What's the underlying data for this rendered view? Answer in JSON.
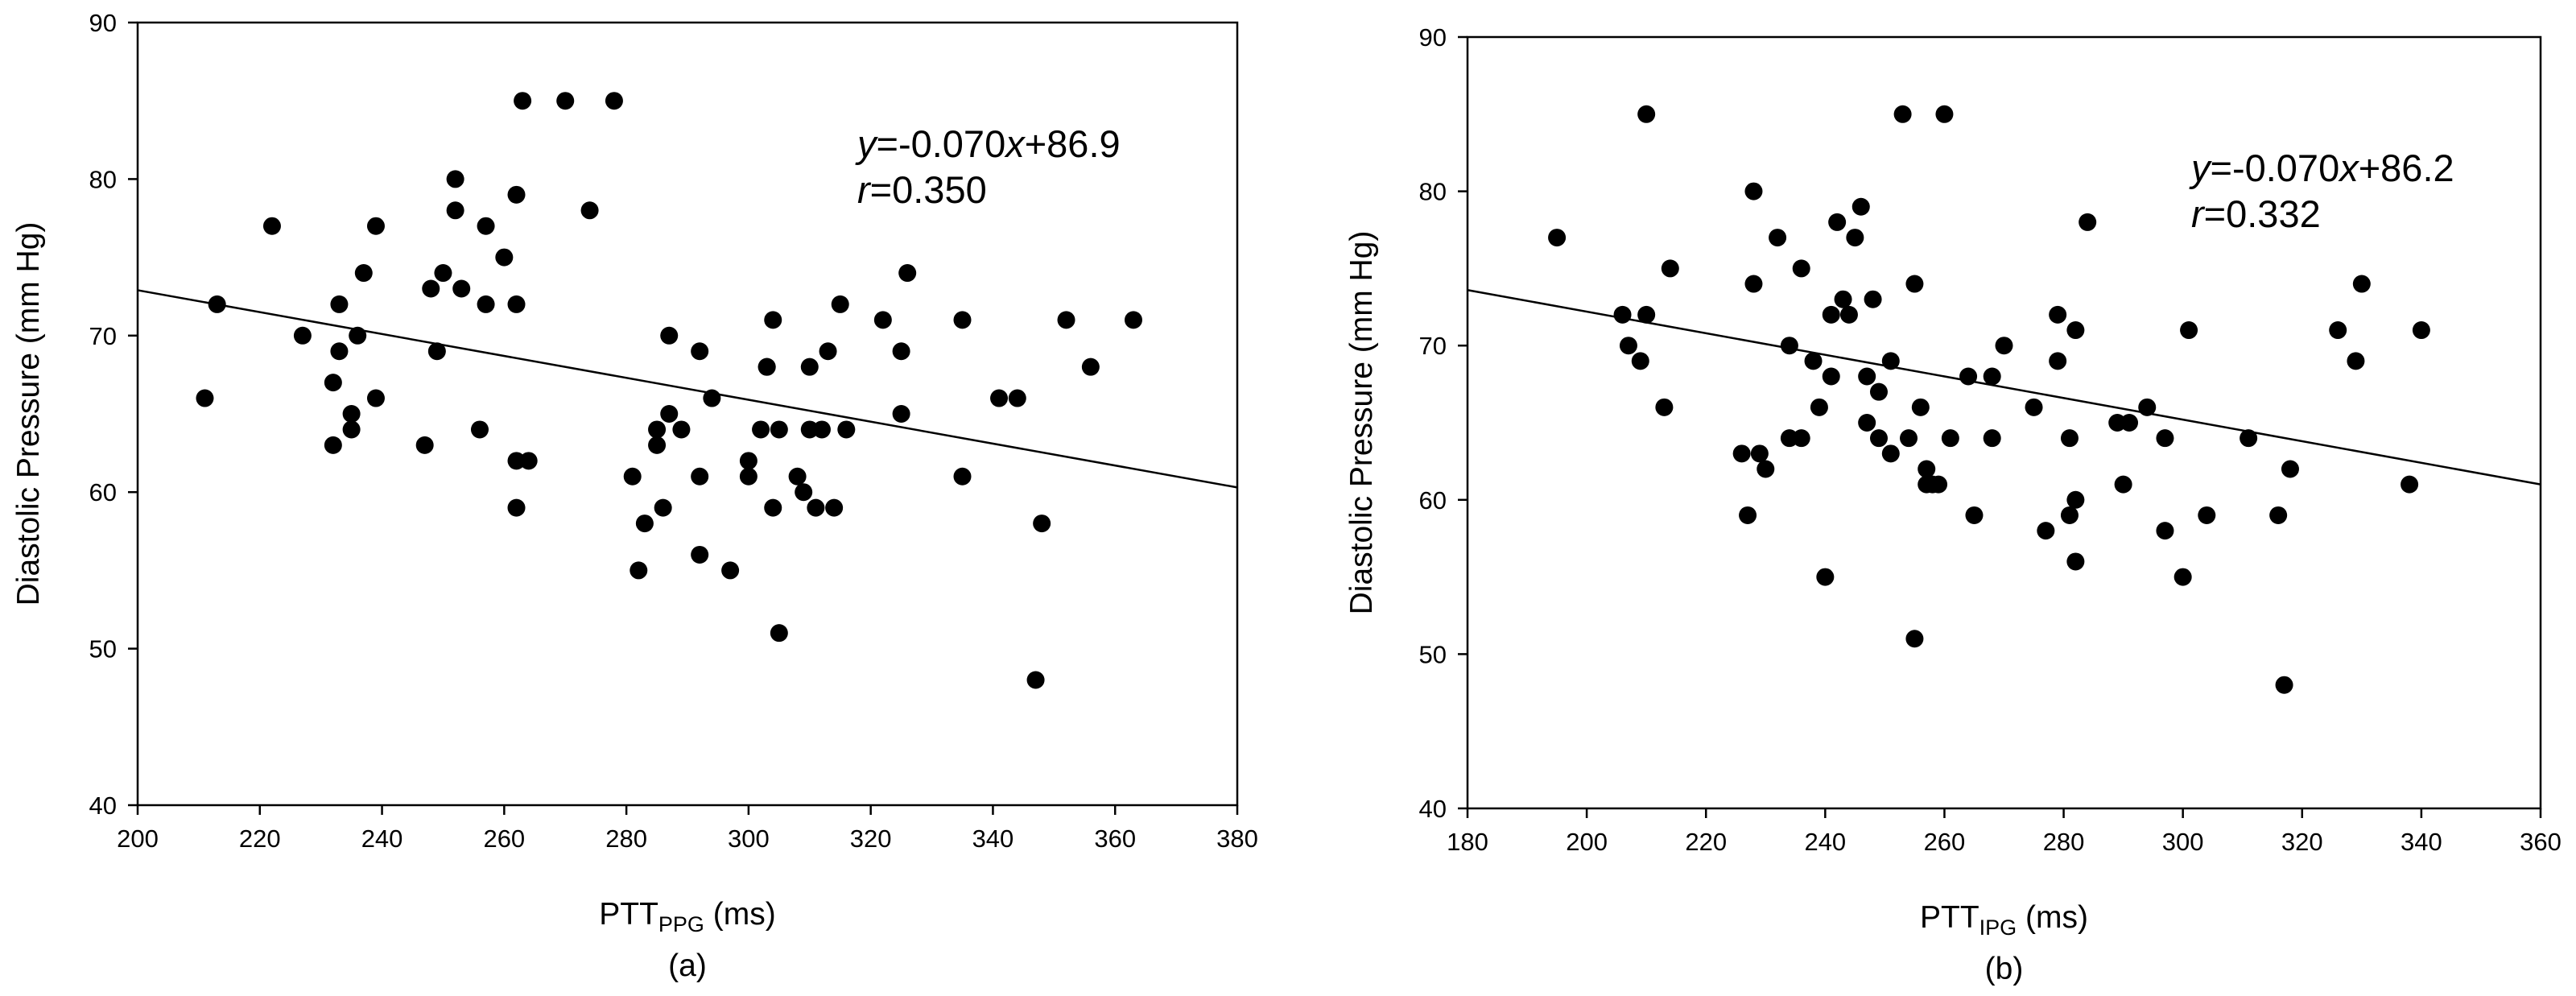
{
  "chart_data": [
    {
      "type": "scatter",
      "panel_label": "(a)",
      "xlabel_main": "PTT",
      "xlabel_sub": "PPG",
      "xlabel_unit": " (ms)",
      "ylabel": "Diastolic Pressure (mm Hg)",
      "xlim": [
        200,
        380
      ],
      "ylim": [
        40,
        90
      ],
      "xticks": [
        "200",
        "220",
        "240",
        "260",
        "280",
        "300",
        "320",
        "340",
        "360",
        "380"
      ],
      "yticks": [
        "40",
        "50",
        "60",
        "70",
        "80",
        "90"
      ],
      "grid": false,
      "fit_line": {
        "slope": -0.07,
        "intercept": 86.9
      },
      "annotation": {
        "y_var": "y",
        "equation": "=-0.070",
        "x_var": "x",
        "equation_tail": "+86.9",
        "r_var": "r",
        "r_value": "=0.350"
      },
      "x": [
        211,
        213,
        222,
        227,
        232,
        232,
        233,
        233,
        235,
        235,
        236,
        237,
        239,
        239,
        247,
        248,
        249,
        250,
        252,
        252,
        253,
        256,
        257,
        257,
        260,
        262,
        262,
        262,
        262,
        263,
        264,
        270,
        274,
        278,
        281,
        282,
        283,
        285,
        285,
        286,
        287,
        287,
        289,
        292,
        292,
        292,
        294,
        297,
        300,
        300,
        302,
        303,
        303,
        304,
        304,
        305,
        305,
        308,
        309,
        310,
        310,
        311,
        312,
        313,
        314,
        315,
        316,
        322,
        325,
        325,
        326,
        335,
        335,
        341,
        344,
        347,
        348,
        352,
        356,
        363
      ],
      "y": [
        66,
        72,
        77,
        70,
        67,
        63,
        69,
        72,
        65,
        64,
        70,
        74,
        66,
        77,
        63,
        73,
        69,
        74,
        78,
        80,
        73,
        64,
        77,
        72,
        75,
        59,
        62,
        72,
        79,
        85,
        62,
        85,
        78,
        85,
        61,
        55,
        58,
        63,
        64,
        59,
        70,
        65,
        64,
        69,
        61,
        56,
        66,
        55,
        62,
        61,
        64,
        68,
        68,
        59,
        71,
        64,
        51,
        61,
        60,
        64,
        68,
        59,
        64,
        69,
        59,
        72,
        64,
        71,
        69,
        65,
        74,
        61,
        71,
        66,
        66,
        48,
        58,
        71,
        68,
        71
      ]
    },
    {
      "type": "scatter",
      "panel_label": "(b)",
      "xlabel_main": "PTT",
      "xlabel_sub": "IPG",
      "xlabel_unit": " (ms)",
      "ylabel": "Diastolic Pressure (mm Hg)",
      "xlim": [
        180,
        360
      ],
      "ylim": [
        40,
        90
      ],
      "xticks": [
        "180",
        "200",
        "220",
        "240",
        "260",
        "280",
        "300",
        "320",
        "340",
        "360"
      ],
      "yticks": [
        "40",
        "50",
        "60",
        "70",
        "80",
        "90"
      ],
      "grid": false,
      "fit_line": {
        "slope": -0.07,
        "intercept": 86.2
      },
      "annotation": {
        "y_var": "y",
        "equation": "=-0.070",
        "x_var": "x",
        "equation_tail": "+86.2",
        "r_var": "r",
        "r_value": "=0.332"
      },
      "x": [
        195,
        206,
        207,
        209,
        210,
        210,
        213,
        214,
        226,
        227,
        228,
        228,
        229,
        230,
        232,
        234,
        234,
        236,
        236,
        238,
        239,
        240,
        241,
        241,
        242,
        243,
        244,
        245,
        246,
        247,
        247,
        248,
        249,
        249,
        251,
        251,
        253,
        254,
        255,
        255,
        256,
        257,
        257,
        258,
        259,
        260,
        261,
        264,
        265,
        268,
        268,
        270,
        275,
        277,
        279,
        279,
        281,
        281,
        282,
        282,
        282,
        284,
        289,
        290,
        291,
        294,
        297,
        297,
        300,
        301,
        304,
        311,
        316,
        317,
        318,
        326,
        329,
        330,
        338,
        340
      ],
      "y": [
        77,
        72,
        70,
        69,
        72,
        85,
        66,
        75,
        63,
        59,
        74,
        80,
        63,
        62,
        77,
        70,
        64,
        64,
        75,
        69,
        66,
        55,
        72,
        68,
        78,
        73,
        72,
        77,
        79,
        68,
        65,
        73,
        64,
        67,
        63,
        69,
        85,
        64,
        51,
        74,
        66,
        61,
        62,
        61,
        61,
        85,
        64,
        68,
        59,
        68,
        64,
        70,
        66,
        58,
        69,
        72,
        59,
        64,
        71,
        60,
        56,
        78,
        65,
        61,
        65,
        66,
        58,
        64,
        55,
        71,
        59,
        64,
        59,
        48,
        62,
        71,
        69,
        74,
        61,
        71
      ]
    }
  ]
}
